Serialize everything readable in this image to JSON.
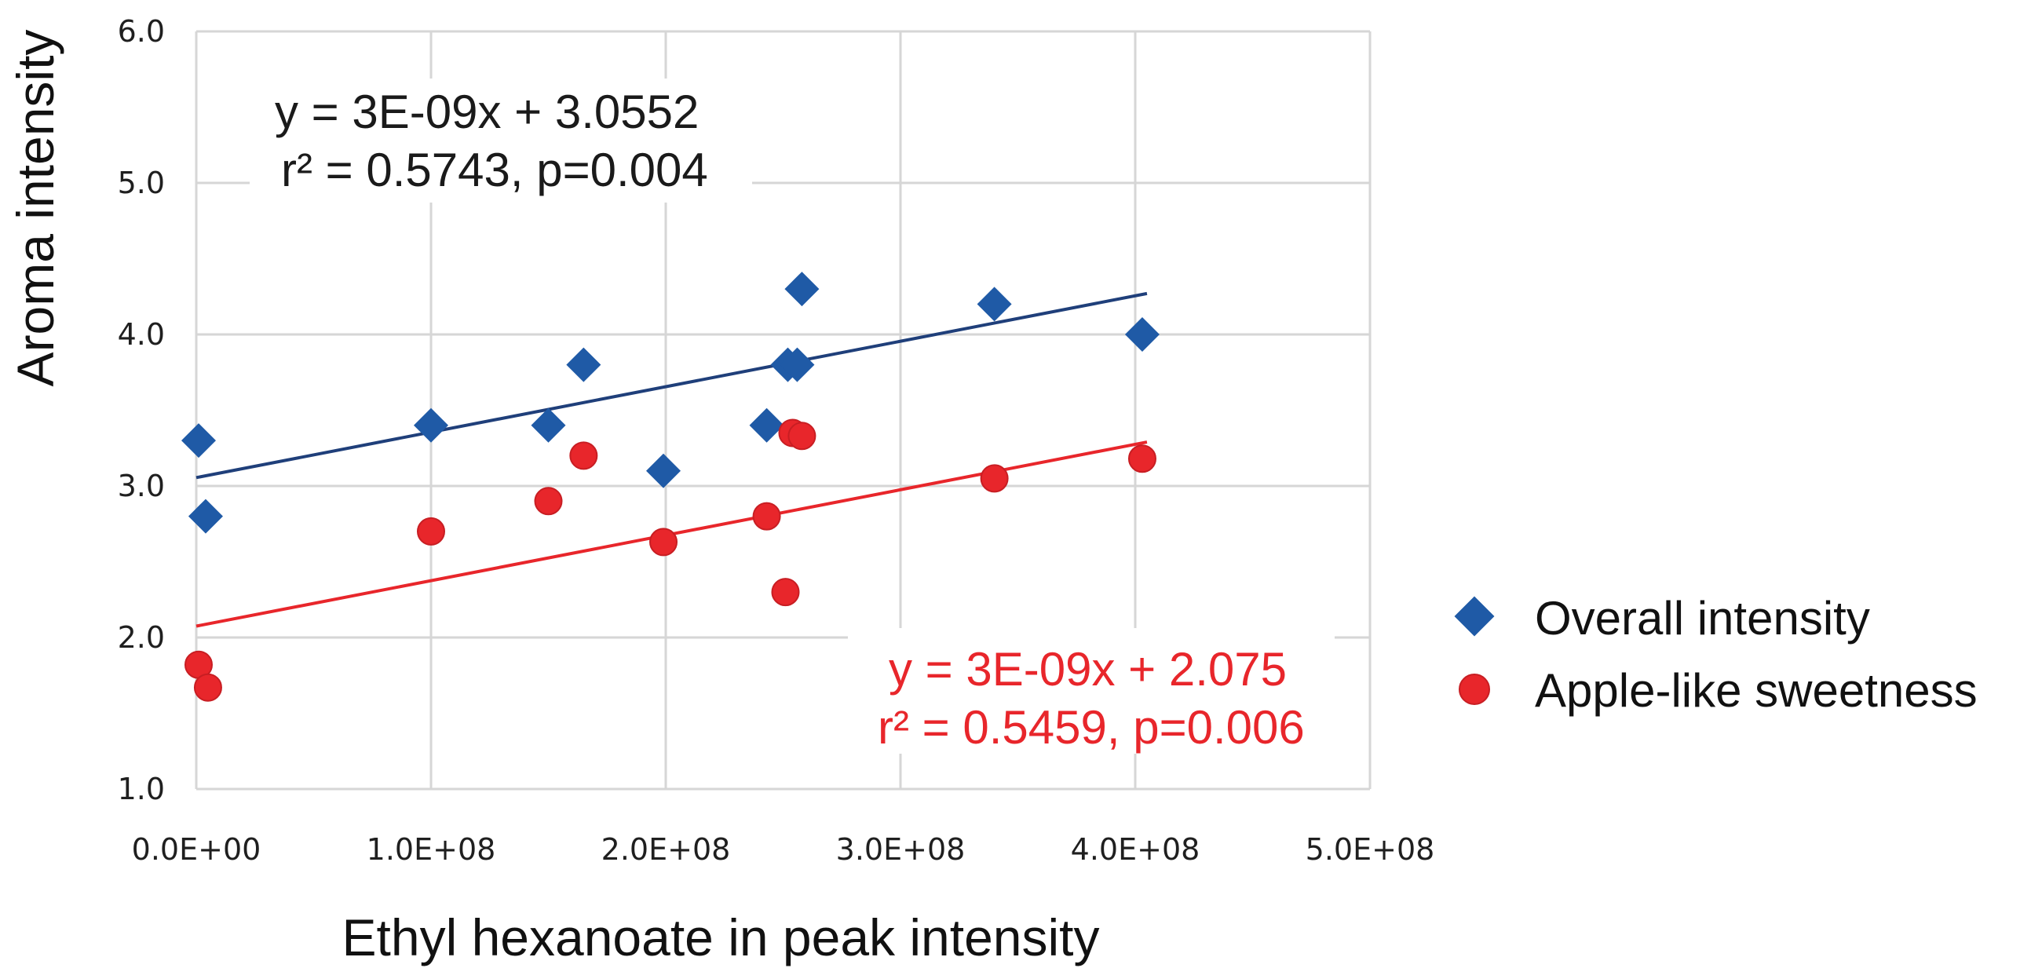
{
  "chart_data": {
    "type": "scatter",
    "xlabel": "Ethyl hexanoate in peak intensity",
    "ylabel": "Aroma intensity",
    "xlim": [
      0,
      500000000
    ],
    "ylim": [
      1.0,
      6.0
    ],
    "x_ticks": [
      0,
      100000000,
      200000000,
      300000000,
      400000000,
      500000000
    ],
    "x_tick_labels": [
      "0.0E+00",
      "1.0E+08",
      "2.0E+08",
      "3.0E+08",
      "4.0E+08",
      "5.0E+08"
    ],
    "y_ticks": [
      1.0,
      2.0,
      3.0,
      4.0,
      5.0,
      6.0
    ],
    "y_tick_labels": [
      "1.0",
      "2.0",
      "3.0",
      "4.0",
      "5.0",
      "6.0"
    ],
    "grid": true,
    "legend_position": "right",
    "series": [
      {
        "name": "Overall intensity",
        "marker": "diamond",
        "color": "#1f5aa6",
        "points": [
          [
            1000000,
            3.3
          ],
          [
            4000000,
            2.8
          ],
          [
            100000000,
            3.4
          ],
          [
            150000000,
            3.4
          ],
          [
            165000000,
            3.8
          ],
          [
            199000000,
            3.1
          ],
          [
            243000000,
            3.4
          ],
          [
            252000000,
            3.8
          ],
          [
            256000000,
            3.8
          ],
          [
            258000000,
            4.3
          ],
          [
            340000000,
            4.2
          ],
          [
            403000000,
            4.0
          ]
        ],
        "trendline": {
          "slope": 3e-09,
          "intercept": 3.0552,
          "x_range": [
            0,
            405000000
          ]
        },
        "equation": "y = 3E-09x + 3.0552",
        "stats": "r² = 0.5743,  p=0.004"
      },
      {
        "name": "Apple-like sweetness",
        "marker": "circle",
        "color": "#e8262b",
        "points": [
          [
            1000000,
            1.82
          ],
          [
            5000000,
            1.67
          ],
          [
            100000000,
            2.7
          ],
          [
            150000000,
            2.9
          ],
          [
            165000000,
            3.2
          ],
          [
            199000000,
            2.63
          ],
          [
            243000000,
            2.8
          ],
          [
            251000000,
            2.3
          ],
          [
            254000000,
            3.35
          ],
          [
            258000000,
            3.33
          ],
          [
            340000000,
            3.05
          ],
          [
            403000000,
            3.18
          ]
        ],
        "trendline": {
          "slope": 3e-09,
          "intercept": 2.075,
          "x_range": [
            0,
            405000000
          ]
        },
        "equation": "y = 3E-09x + 2.075",
        "stats": "r² = 0.5459,  p=0.006"
      }
    ]
  }
}
